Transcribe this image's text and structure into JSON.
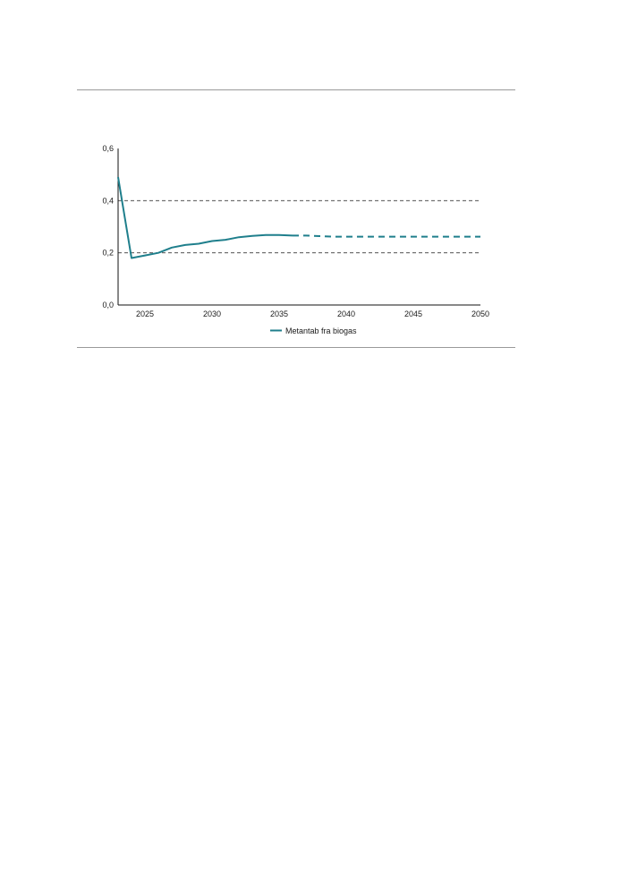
{
  "chart_data": {
    "type": "line",
    "title": "",
    "xlabel": "",
    "ylabel": "",
    "xlim": [
      2023,
      2050
    ],
    "ylim": [
      0,
      0.6
    ],
    "x_ticks": [
      2025,
      2030,
      2035,
      2040,
      2045,
      2050
    ],
    "x_tick_labels": [
      "2025",
      "2030",
      "2035",
      "2040",
      "2045",
      "2050"
    ],
    "y_ticks": [
      0,
      0.2,
      0.4,
      0.6
    ],
    "y_tick_labels": [
      "0,0",
      "0,2",
      "0,4",
      "0,6"
    ],
    "grid": "horizontal dashed at 0,2 and 0,4",
    "legend_position": "bottom-center",
    "series": [
      {
        "name": "Metantab fra biogas",
        "color": "#1f7f8c",
        "historical": {
          "x": [
            2023,
            2024,
            2025,
            2026,
            2027,
            2028,
            2029,
            2030,
            2031,
            2032,
            2033,
            2034,
            2035,
            2036
          ],
          "y": [
            0.49,
            0.18,
            0.19,
            0.2,
            0.22,
            0.23,
            0.235,
            0.245,
            0.25,
            0.26,
            0.265,
            0.268,
            0.268,
            0.266
          ]
        },
        "projection": {
          "x": [
            2036,
            2037,
            2038,
            2039,
            2040,
            2041,
            2042,
            2043,
            2044,
            2045,
            2046,
            2047,
            2048,
            2049,
            2050
          ],
          "y": [
            0.266,
            0.266,
            0.264,
            0.262,
            0.262,
            0.262,
            0.262,
            0.262,
            0.262,
            0.262,
            0.262,
            0.262,
            0.262,
            0.262,
            0.262
          ]
        }
      }
    ]
  }
}
